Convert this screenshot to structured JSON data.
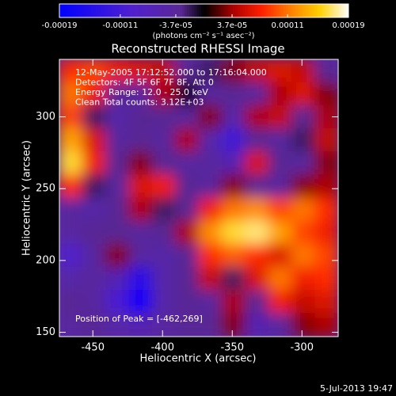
{
  "chart_data": {
    "type": "heatmap",
    "title": "Reconstructed RHESSI Image",
    "x_label": "Heliocentric X (arcsec)",
    "y_label": "Heliocentric Y (arcsec)",
    "colorbar_label": "(photons cm⁻² s⁻¹ asec⁻²)",
    "annotations": [
      "12-May-2005 17:12:52.000 to 17:16:04.000",
      "Detectors: 4F 5F 6F 7F 8F, Att 0",
      "Energy Range: 12.0 - 25.0 keV",
      "Clean    Total counts: 3.12E+03"
    ],
    "peak_label": "Position of Peak = [-462,269]",
    "footer": "5-Jul-2013 19:47",
    "xlim": [
      -474,
      -274
    ],
    "ylim": [
      147,
      340
    ],
    "xticks": [
      -450,
      -400,
      -350,
      -300
    ],
    "yticks": [
      150,
      200,
      250,
      300
    ],
    "zlim": [
      -0.00019,
      0.00019
    ],
    "zticks": [
      -0.00019,
      -0.00011,
      {
        "value": -3.7e-05,
        "label": "-3.7e-05"
      },
      {
        "value": 3.7e-05,
        "label": "3.7e-05"
      },
      0.00011,
      0.00019
    ],
    "x": [
      -465.7,
      -449,
      -432.3,
      -415.7,
      -399,
      -382.3,
      -365.7,
      -349,
      -332.3,
      -315.7,
      -299,
      -282.3
    ],
    "y": [
      332,
      315.9,
      299.8,
      283.8,
      267.7,
      251.6,
      235.5,
      219.4,
      203.3,
      187.3,
      171.2,
      155.1
    ],
    "z": [
      [
        8e-05,
        9e-05,
        7e-05,
        6e-05,
        5e-05,
        -3e-05,
        -2e-05,
        3e-05,
        5e-05,
        6e-05,
        5e-05,
        -3e-05
      ],
      [
        0.00011,
        7e-05,
        -3e-05,
        -4e-05,
        4e-05,
        0,
        -4e-05,
        -3e-05,
        -4e-05,
        4e-05,
        6e-05,
        3e-05
      ],
      [
        9e-05,
        -2e-05,
        -5e-05,
        -3e-05,
        -3e-05,
        -4e-05,
        3e-05,
        -5e-05,
        4e-05,
        5e-05,
        -3e-05,
        4e-05
      ],
      [
        0.00013,
        6e-05,
        -4e-05,
        -3e-05,
        -4e-05,
        4e-05,
        -5e-05,
        -0.00011,
        -3e-05,
        -4e-05,
        -2e-05,
        5e-05
      ],
      [
        0.00016,
        7e-05,
        -3e-05,
        3e-05,
        -3e-05,
        -4e-05,
        -4e-05,
        -6e-05,
        6e-05,
        -3e-05,
        -4e-05,
        3e-05
      ],
      [
        8e-05,
        -2e-05,
        -4e-05,
        6e-05,
        7e-05,
        -3e-05,
        -4e-05,
        3e-05,
        -3e-05,
        -4e-05,
        3e-05,
        4e-05
      ],
      [
        -4e-05,
        -5e-05,
        -3e-05,
        4e-05,
        -2e-05,
        -3e-05,
        7e-05,
        0.00011,
        0.00012,
        9e-05,
        0.00011,
        8e-05
      ],
      [
        -4e-05,
        -3e-05,
        -3e-05,
        -4e-05,
        -3e-05,
        4e-05,
        0.00012,
        0.00016,
        0.00017,
        0.00013,
        9e-05,
        7e-05
      ],
      [
        -9e-05,
        -4e-05,
        3e-05,
        -4e-05,
        -5e-05,
        -3e-05,
        8e-05,
        0.0001,
        8e-05,
        6e-05,
        0.00011,
        9e-05
      ],
      [
        -5e-05,
        -4e-05,
        -6e-05,
        -0.00014,
        -5e-05,
        -3e-05,
        5e-05,
        -2e-05,
        6e-05,
        0.00011,
        7e-05,
        8e-05
      ],
      [
        -3e-05,
        -4e-05,
        -0.0001,
        -0.00018,
        -5e-05,
        -3e-05,
        -4e-05,
        4e-05,
        -3e-05,
        7e-05,
        5e-05,
        6e-05
      ],
      [
        -4e-05,
        -3e-05,
        -5e-05,
        -6e-05,
        -4e-05,
        -3e-05,
        -3e-05,
        3e-05,
        -6e-05,
        -4e-05,
        3e-05,
        4e-05
      ]
    ]
  }
}
